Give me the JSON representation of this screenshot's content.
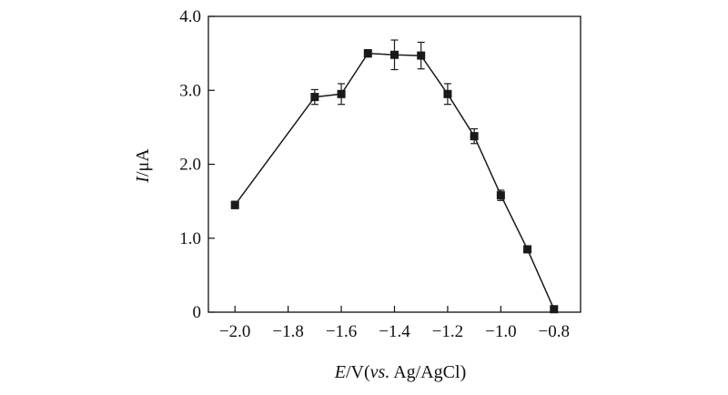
{
  "chart_data": {
    "type": "line",
    "title": "",
    "xlabel": {
      "prefix_italic": "E",
      "middle": "/V(",
      "vs_italic": "vs.",
      "suffix": " Ag/AgCl)"
    },
    "ylabel": {
      "italic": "I",
      "rest": "/μA"
    },
    "xlim": [
      -2.1,
      -0.7
    ],
    "ylim": [
      0,
      4.0
    ],
    "xticks": [
      -2.0,
      -1.8,
      -1.6,
      -1.4,
      -1.2,
      -1.0,
      -0.8
    ],
    "xtick_labels": [
      "−2.0",
      "−1.8",
      "−1.6",
      "−1.4",
      "−1.2",
      "−1.0",
      "−0.8"
    ],
    "yticks": [
      0,
      1.0,
      2.0,
      3.0,
      4.0
    ],
    "ytick_labels": [
      "0",
      "1.0",
      "2.0",
      "3.0",
      "4.0"
    ],
    "grid": false,
    "series": [
      {
        "x": [
          -2.0,
          -1.7,
          -1.6,
          -1.5,
          -1.4,
          -1.3,
          -1.2,
          -1.1,
          -1.0,
          -0.9,
          -0.8
        ],
        "y": [
          1.45,
          2.91,
          2.95,
          3.5,
          3.48,
          3.47,
          2.95,
          2.38,
          1.58,
          0.85,
          0.04
        ],
        "yerr": [
          0.05,
          0.1,
          0.14,
          0.05,
          0.2,
          0.18,
          0.14,
          0.1,
          0.07,
          0.04,
          0.03
        ],
        "color": "#1a1a1a",
        "marker": "square"
      }
    ]
  }
}
